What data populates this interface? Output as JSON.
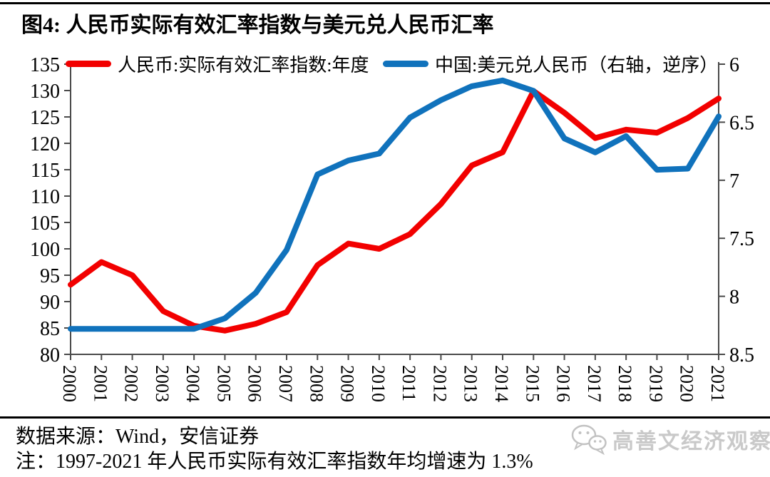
{
  "title": "图4: 人民币实际有效汇率指数与美元兑人民币汇率",
  "legend": [
    {
      "label": "人民币:实际有效汇率指数:年度",
      "color": "#f20000"
    },
    {
      "label": "中国:美元兑人民币（右轴，逆序）",
      "color": "#1072bc"
    }
  ],
  "footer": {
    "source": "数据来源：Wind，安信证券",
    "note": "注：1997-2021 年人民币实际有效汇率指数年均增速为 1.3%",
    "watermark": "高善文经济观察",
    "watermark_icon": "wechat-bubbles-icon"
  },
  "colors": {
    "red_series": "#f20000",
    "blue_series": "#1072bc",
    "axis": "#4a4a4a",
    "rule": "#000000",
    "watermark": "#c9c9c9"
  },
  "chart_data": {
    "type": "line",
    "title": "人民币实际有效汇率指数与美元兑人民币汇率",
    "x": [
      2000,
      2001,
      2002,
      2003,
      2004,
      2005,
      2006,
      2007,
      2008,
      2009,
      2010,
      2011,
      2012,
      2013,
      2014,
      2015,
      2016,
      2017,
      2018,
      2019,
      2020,
      2021
    ],
    "series": [
      {
        "name": "人民币:实际有效汇率指数:年度",
        "axis": "left",
        "color": "#f20000",
        "values": [
          93.2,
          97.5,
          95.0,
          88.2,
          85.4,
          84.5,
          85.8,
          88.0,
          96.9,
          101.0,
          100.0,
          102.8,
          108.5,
          115.8,
          118.3,
          129.9,
          125.8,
          121.0,
          122.6,
          122.0,
          124.8,
          128.5
        ]
      },
      {
        "name": "中国:美元兑人民币（右轴，逆序）",
        "axis": "right",
        "color": "#1072bc",
        "values": [
          8.28,
          8.28,
          8.28,
          8.28,
          8.28,
          8.19,
          7.97,
          7.6,
          6.95,
          6.83,
          6.77,
          6.46,
          6.31,
          6.19,
          6.14,
          6.23,
          6.64,
          6.76,
          6.62,
          6.91,
          6.9,
          6.45
        ]
      }
    ],
    "left_axis": {
      "range": [
        80,
        135
      ],
      "ticks": [
        135,
        130,
        125,
        120,
        115,
        110,
        105,
        100,
        95,
        90,
        85,
        80
      ],
      "reversed": false
    },
    "right_axis": {
      "range": [
        6,
        8.5
      ],
      "ticks": [
        6,
        6.5,
        7,
        7.5,
        8,
        8.5
      ],
      "reversed": true
    },
    "grid": false,
    "legend_position": "top",
    "x_tick_rotation": 90
  }
}
